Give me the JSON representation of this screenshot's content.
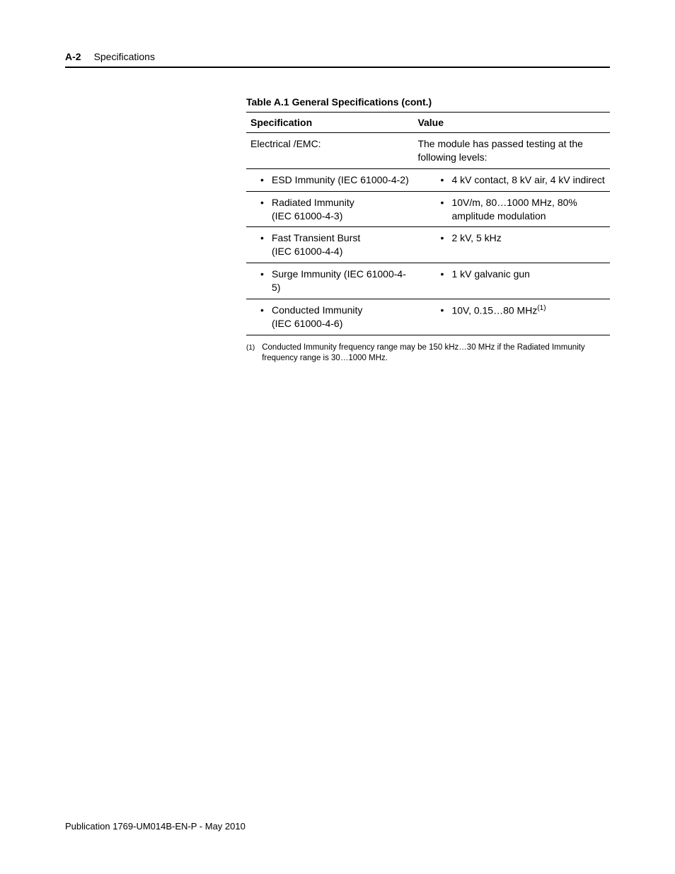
{
  "header": {
    "page_number": "A-2",
    "section": "Specifications"
  },
  "table": {
    "title": "Table A.1 General Specifications (cont.)",
    "columns": [
      "Specification",
      "Value"
    ],
    "rows": [
      {
        "spec": "Electrical /EMC:",
        "value": "The module has passed testing at the following levels:",
        "spec_bullet": false,
        "value_bullet": false
      },
      {
        "spec": "ESD Immunity (IEC 61000-4-2)",
        "value": "4 kV contact, 8 kV air, 4 kV indirect",
        "spec_bullet": true,
        "value_bullet": true
      },
      {
        "spec_line1": "Radiated Immunity",
        "spec_line2": "(IEC 61000-4-3)",
        "value_line1": "10V/m, 80…1000 MHz, 80%",
        "value_line2": "amplitude modulation",
        "spec_bullet": true,
        "value_bullet": true,
        "multiline": true
      },
      {
        "spec_line1": "Fast Transient Burst",
        "spec_line2": "(IEC 61000-4-4)",
        "value": "2 kV, 5 kHz",
        "spec_bullet": true,
        "value_bullet": true,
        "multiline_spec": true
      },
      {
        "spec": "Surge Immunity (IEC 61000-4-5)",
        "value": "1 kV galvanic gun",
        "spec_bullet": true,
        "value_bullet": true
      },
      {
        "spec_line1": "Conducted Immunity",
        "spec_line2": "(IEC 61000-4-6)",
        "value_pre": "10V, 0.15…80 MHz",
        "value_sup": "(1)",
        "spec_bullet": true,
        "value_bullet": true,
        "multiline_spec": true,
        "has_sup": true
      }
    ]
  },
  "footnote": {
    "marker": "(1)",
    "text": "Conducted Immunity frequency range may be 150 kHz…30 MHz if the Radiated Immunity frequency range is 30…1000 MHz."
  },
  "footer": {
    "publication": "Publication 1769-UM014B-EN-P - May 2010"
  }
}
